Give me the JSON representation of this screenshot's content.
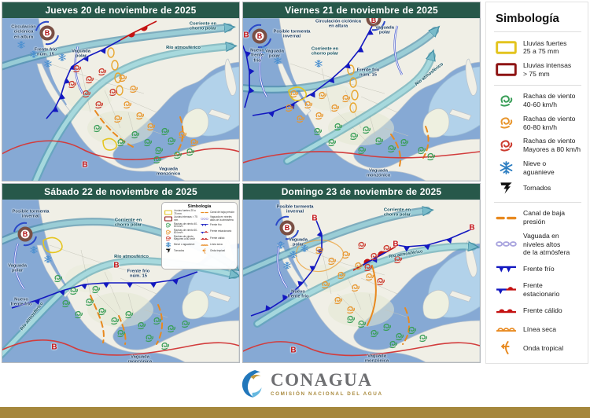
{
  "sym": {
    "low": "B"
  },
  "colors": {
    "header_green": "#27584a",
    "gold_bar": "#a5873c",
    "ocean_blue": "#86a9d4",
    "lluvias_fuertes": "#e3c41e",
    "lluvias_intensas": "#8e1414",
    "gust_40_60": "#3a9e58",
    "gust_60_80": "#e8962e",
    "gust_80": "#cc3b2f",
    "front_blue": "#1318c0",
    "front_red": "#c41212"
  },
  "panels": [
    {
      "title": "Jueves 20 de noviembre de 2025",
      "labels": {
        "circulacion": "Circulación\nciclónica\nen altura",
        "frente15": "Frente frío\nnúm. 15",
        "vaguada_polar": "Vaguada\npolar",
        "chorro": "Corriente en\nchorro polar",
        "rio": "Río atmosférico",
        "monzonica": "Vaguada\nmonzónica"
      }
    },
    {
      "title": "Viernes 21 de noviembre de 2025",
      "labels": {
        "tormenta": "Posible tormenta\ninvernal",
        "circulacion": "Circulación ciclónica\nen altura",
        "nuevo": "Nuevo\nfrente\nfrío",
        "vaguada_polar": "Vaguada\npolar",
        "vaguada_polar2": "Vaguada\npolar",
        "chorro": "Corriente en\nchorro polar",
        "frente15": "Frente frío\nnúm. 15",
        "rio": "Río atmosférico",
        "monzonica": "Vaguada\nmonzónica"
      }
    },
    {
      "title": "Sábado 22 de noviembre de 2025",
      "labels": {
        "tormenta": "Posible tormenta\ninvernal",
        "chorro": "Corriente en\nchorro polar",
        "rio": "Río atmosférico",
        "rio2": "Río atmosférico",
        "frente15": "Frente  frío\nnúm. 15",
        "vaguada_polar": "Vaguada\npolar",
        "nuevo": "Nuevo\nfrente frío",
        "monzonica": "Vaguada\nmonzónica"
      }
    },
    {
      "title": "Domingo 23 de noviembre de 2025",
      "labels": {
        "tormenta": "Posible tormenta\ninvernal",
        "chorro": "Corriente en\nchorro polar",
        "vaguada_polar": "Vaguada\npolar",
        "rio": "Río atmosférico",
        "nuevo": "Nuevo\nfrente frío",
        "monzonica": "Vaguada\nmonzónica"
      }
    }
  ],
  "legend": {
    "title": "Simbología",
    "items": [
      {
        "icon": "rain-heavy",
        "label": "Lluvias fuertes\n25 a 75 mm"
      },
      {
        "icon": "rain-intense",
        "label": "Lluvias intensas\n> 75 mm"
      },
      {
        "icon": "gust-green",
        "label": "Rachas de viento\n40-60 km/h"
      },
      {
        "icon": "gust-orange",
        "label": "Rachas de viento\n60-80 km/h"
      },
      {
        "icon": "gust-red",
        "label": "Rachas de viento\nMayores a 80 km/h"
      },
      {
        "icon": "snow",
        "label": "Nieve o\naguanieve"
      },
      {
        "icon": "tornado",
        "label": "Tornados"
      },
      {
        "icon": "low-channel",
        "label": "Canal de baja\npresión"
      },
      {
        "icon": "upper-trough",
        "label": "Vaguada en\nniveles altos\nde la atmósfera"
      },
      {
        "icon": "cold-front",
        "label": "Frente frío"
      },
      {
        "icon": "stationary-front",
        "label": "Frente\nestacionario"
      },
      {
        "icon": "warm-front",
        "label": "Frente cálido"
      },
      {
        "icon": "dry-line",
        "label": "Línea seca"
      },
      {
        "icon": "tropical-wave",
        "label": "Onda tropical"
      }
    ]
  },
  "footer": {
    "brand": "CONAGUA",
    "tagline": "COMISIÓN NACIONAL DEL AGUA"
  }
}
